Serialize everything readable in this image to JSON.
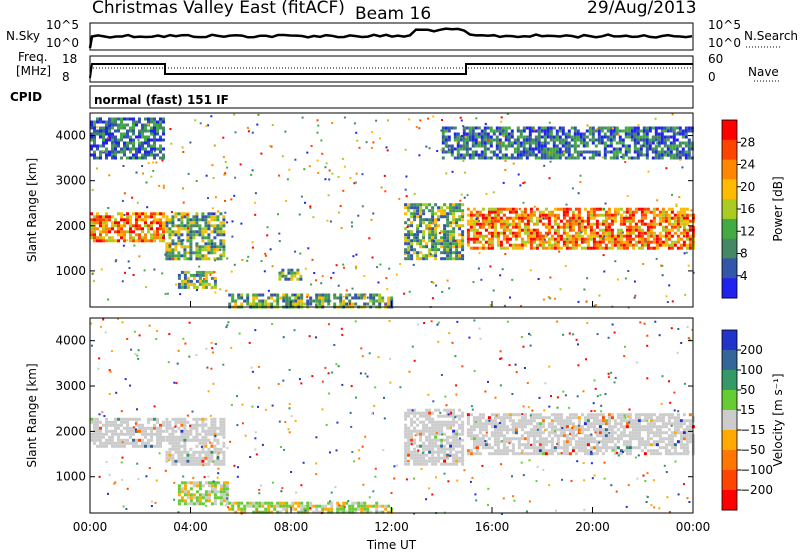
{
  "header": {
    "title": "Christmas Valley East (fitACF)",
    "beam": "Beam 16",
    "date": "29/Aug/2013"
  },
  "sky_panel": {
    "left_label": "N.Sky",
    "right_label": "N.Search",
    "left_ticks": [
      "10^5",
      "10^0"
    ],
    "right_ticks": [
      "10^5",
      "10^0"
    ]
  },
  "freq_panel": {
    "left_label_1": "Freq.",
    "left_label_2": "[MHz]",
    "left_ticks": [
      "18",
      "8"
    ],
    "right_label": "Nave",
    "right_ticks": [
      "60",
      "0"
    ],
    "cpid_label": "CPID",
    "cpid_text": "normal (fast) 151 IF"
  },
  "chart_data": [
    {
      "type": "heatmap",
      "ylabel": "Slant Range [km]",
      "xlabel": "Time UT",
      "x_ticks": [
        "00:00",
        "04:00",
        "08:00",
        "12:00",
        "16:00",
        "20:00",
        "00:00"
      ],
      "xlim_hours": [
        0,
        24
      ],
      "y_ticks": [
        1000,
        2000,
        3000,
        4000
      ],
      "ylim": [
        200,
        4500
      ],
      "colorbar": {
        "label": "Power [dB]",
        "ticks": [
          "28",
          "24",
          "20",
          "16",
          "12",
          "8",
          "4"
        ],
        "colors": [
          "#ff0000",
          "#ff4400",
          "#ff8800",
          "#ffbb00",
          "#aacc22",
          "#44aa44",
          "#448866",
          "#3355aa",
          "#2222ee"
        ]
      },
      "echo_regions": [
        {
          "t0": 0.0,
          "t1": 2.9,
          "r0": 1700,
          "r1": 2300,
          "level": "high"
        },
        {
          "t0": 0.0,
          "t1": 2.9,
          "r0": 3500,
          "r1": 4400,
          "level": "low"
        },
        {
          "t0": 3.0,
          "t1": 5.3,
          "r0": 1250,
          "r1": 2300,
          "level": "mid"
        },
        {
          "t0": 3.5,
          "t1": 5.0,
          "r0": 650,
          "r1": 1000,
          "level": "mid"
        },
        {
          "t0": 5.5,
          "t1": 12.0,
          "r0": 200,
          "r1": 500,
          "level": "mid"
        },
        {
          "t0": 7.5,
          "t1": 8.4,
          "r0": 800,
          "r1": 1050,
          "level": "mid"
        },
        {
          "t0": 12.5,
          "t1": 14.8,
          "r0": 1250,
          "r1": 2500,
          "level": "mid"
        },
        {
          "t0": 15.0,
          "t1": 24.0,
          "r0": 1500,
          "r1": 2400,
          "level": "high"
        },
        {
          "t0": 14.0,
          "t1": 24.0,
          "r0": 3500,
          "r1": 4200,
          "level": "low"
        }
      ]
    },
    {
      "type": "heatmap",
      "ylabel": "Slant Range [km]",
      "xlabel": "Time UT",
      "x_ticks": [
        "00:00",
        "04:00",
        "08:00",
        "12:00",
        "16:00",
        "20:00",
        "00:00"
      ],
      "xlim_hours": [
        0,
        24
      ],
      "y_ticks": [
        1000,
        2000,
        3000,
        4000
      ],
      "ylim": [
        200,
        4500
      ],
      "colorbar": {
        "label": "Velocity [m s⁻¹]",
        "ticks": [
          "200",
          "100",
          "50",
          "15",
          "−15",
          "−50",
          "−100",
          "−200"
        ],
        "colors": [
          "#2233cc",
          "#336699",
          "#339966",
          "#66cc33",
          "#cccccc",
          "#ffaa00",
          "#ff7700",
          "#ff4400",
          "#ff0000"
        ]
      },
      "echo_regions": [
        {
          "t0": 0.0,
          "t1": 2.9,
          "r0": 1700,
          "r1": 2300,
          "level": "ground"
        },
        {
          "t0": 3.0,
          "t1": 5.3,
          "r0": 1300,
          "r1": 2300,
          "level": "ground"
        },
        {
          "t0": 3.5,
          "t1": 5.5,
          "r0": 400,
          "r1": 900,
          "level": "slow"
        },
        {
          "t0": 5.5,
          "t1": 12.0,
          "r0": 200,
          "r1": 450,
          "level": "slow"
        },
        {
          "t0": 12.5,
          "t1": 14.8,
          "r0": 1250,
          "r1": 2500,
          "level": "ground"
        },
        {
          "t0": 15.0,
          "t1": 24.0,
          "r0": 1500,
          "r1": 2400,
          "level": "ground"
        }
      ]
    }
  ]
}
